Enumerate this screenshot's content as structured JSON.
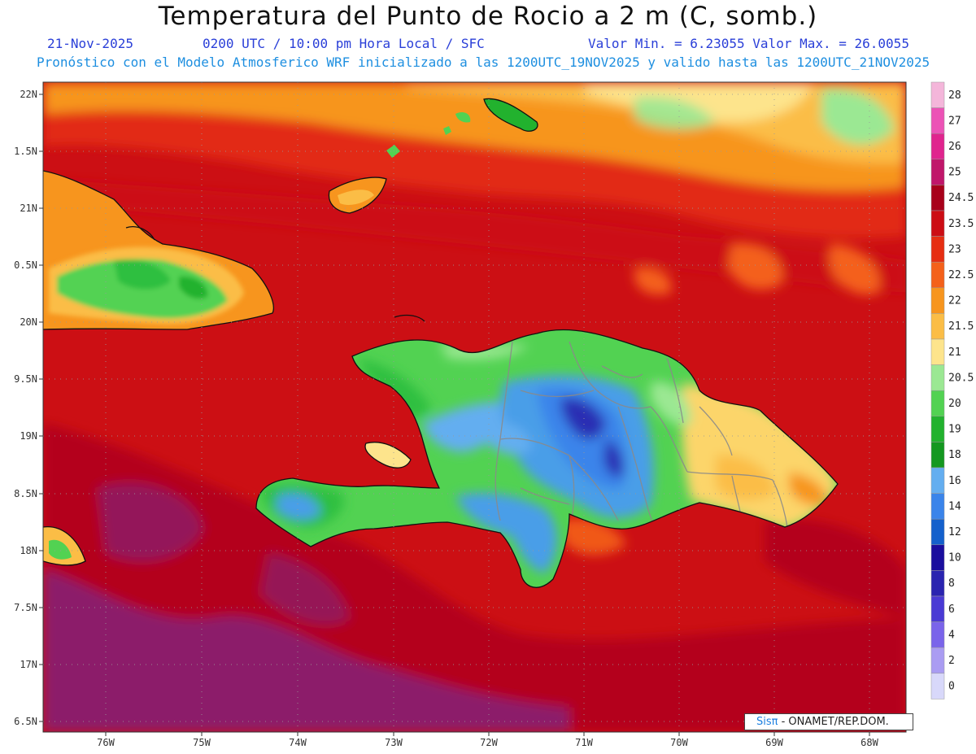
{
  "header": {
    "title": "Temperatura del Punto de Rocio a 2 m (C, somb.)",
    "date": "21-Nov-2025",
    "time": "0200 UTC / 10:00 pm Hora Local / SFC",
    "min_max": "Valor Min. = 6.23055  Valor Max. = 26.0055",
    "model_info": "Pronóstico con el Modelo Atmosferico WRF inicializado a las 1200UTC_19NOV2025 y valido hasta las  1200UTC_21NOV2025"
  },
  "axes": {
    "lat_labels": [
      "22N",
      "1.5N",
      "21N",
      "0.5N",
      "20N",
      "9.5N",
      "19N",
      "8.5N",
      "18N",
      "7.5N",
      "17N",
      "6.5N"
    ],
    "lon_labels": [
      "76W",
      "75W",
      "74W",
      "73W",
      "72W",
      "71W",
      "70W",
      "69W",
      "68W"
    ]
  },
  "legend": {
    "levels": [
      {
        "label": "28",
        "color": "#f4b6da"
      },
      {
        "label": "27",
        "color": "#ec52b6"
      },
      {
        "label": "26",
        "color": "#e0248e"
      },
      {
        "label": "25",
        "color": "#c0166a"
      },
      {
        "label": "24.5",
        "color": "#a8001a"
      },
      {
        "label": "23.5",
        "color": "#cc0d14"
      },
      {
        "label": "23",
        "color": "#e62e12"
      },
      {
        "label": "22.5",
        "color": "#f4611a"
      },
      {
        "label": "22",
        "color": "#f7951e"
      },
      {
        "label": "21.5",
        "color": "#fbbd46"
      },
      {
        "label": "21",
        "color": "#fde48c"
      },
      {
        "label": "20.5",
        "color": "#9be893"
      },
      {
        "label": "20",
        "color": "#52d252"
      },
      {
        "label": "19",
        "color": "#22b22e"
      },
      {
        "label": "18",
        "color": "#149820"
      },
      {
        "label": "16",
        "color": "#64aef0"
      },
      {
        "label": "14",
        "color": "#3a84ea"
      },
      {
        "label": "12",
        "color": "#1460cc"
      },
      {
        "label": "10",
        "color": "#1a0e9e"
      },
      {
        "label": "8",
        "color": "#2a24b0"
      },
      {
        "label": "6",
        "color": "#4a3ad4"
      },
      {
        "label": "4",
        "color": "#7a64ea"
      },
      {
        "label": "2",
        "color": "#aa9cf2"
      },
      {
        "label": "0",
        "color": "#d8d8fa"
      }
    ]
  },
  "field_colors": {
    "deep_sea": "#8c1a6a",
    "sea_dark_red": "#b4061c",
    "sea_red": "#cc0f14",
    "sea_red_orange": "#e22a12",
    "north_orange": "#f7951e",
    "north_light": "#fbbd46",
    "haiti_green": "#2fbf3f",
    "interior_blue": "#4a9ee8",
    "core_dark_blue": "#2a2fb4",
    "east_yellow": "#fcd56a"
  },
  "credit": {
    "sis": "Sisπ",
    "org": " - ONAMET/REP.DOM."
  }
}
